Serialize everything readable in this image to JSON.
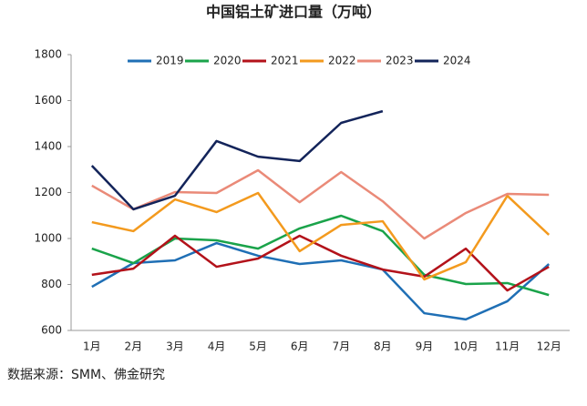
{
  "chart_data": {
    "type": "line",
    "title": "中国铝土矿进口量（万吨）",
    "source": "数据来源：SMM、佛金研究",
    "categories": [
      "1月",
      "2月",
      "3月",
      "4月",
      "5月",
      "6月",
      "7月",
      "8月",
      "9月",
      "10月",
      "11月",
      "12月"
    ],
    "ylim": [
      600,
      1800
    ],
    "yticks": [
      600,
      800,
      1000,
      1200,
      1400,
      1600,
      1800
    ],
    "series": [
      {
        "name": "2019",
        "color": "#1f6fb5",
        "values": [
          790,
          893,
          905,
          980,
          925,
          889,
          905,
          865,
          675,
          648,
          727,
          889
        ]
      },
      {
        "name": "2020",
        "color": "#1aa34a",
        "values": [
          956,
          893,
          1000,
          992,
          956,
          1044,
          1099,
          1032,
          842,
          802,
          806,
          754
        ]
      },
      {
        "name": "2021",
        "color": "#b3121a",
        "values": [
          842,
          869,
          1012,
          877,
          913,
          1012,
          925,
          865,
          834,
          956,
          774,
          877
        ]
      },
      {
        "name": "2022",
        "color": "#f39a1e",
        "values": [
          1071,
          1032,
          1170,
          1115,
          1198,
          945,
          1059,
          1075,
          822,
          897,
          1186,
          1016
        ]
      },
      {
        "name": "2023",
        "color": "#ea8a78",
        "values": [
          1230,
          1127,
          1202,
          1198,
          1297,
          1158,
          1289,
          1162,
          1000,
          1111,
          1194,
          1190
        ]
      },
      {
        "name": "2024",
        "color": "#13245a",
        "values": [
          1317,
          1127,
          1186,
          1424,
          1356,
          1337,
          1503,
          1554,
          null,
          null,
          null,
          null
        ]
      }
    ]
  }
}
